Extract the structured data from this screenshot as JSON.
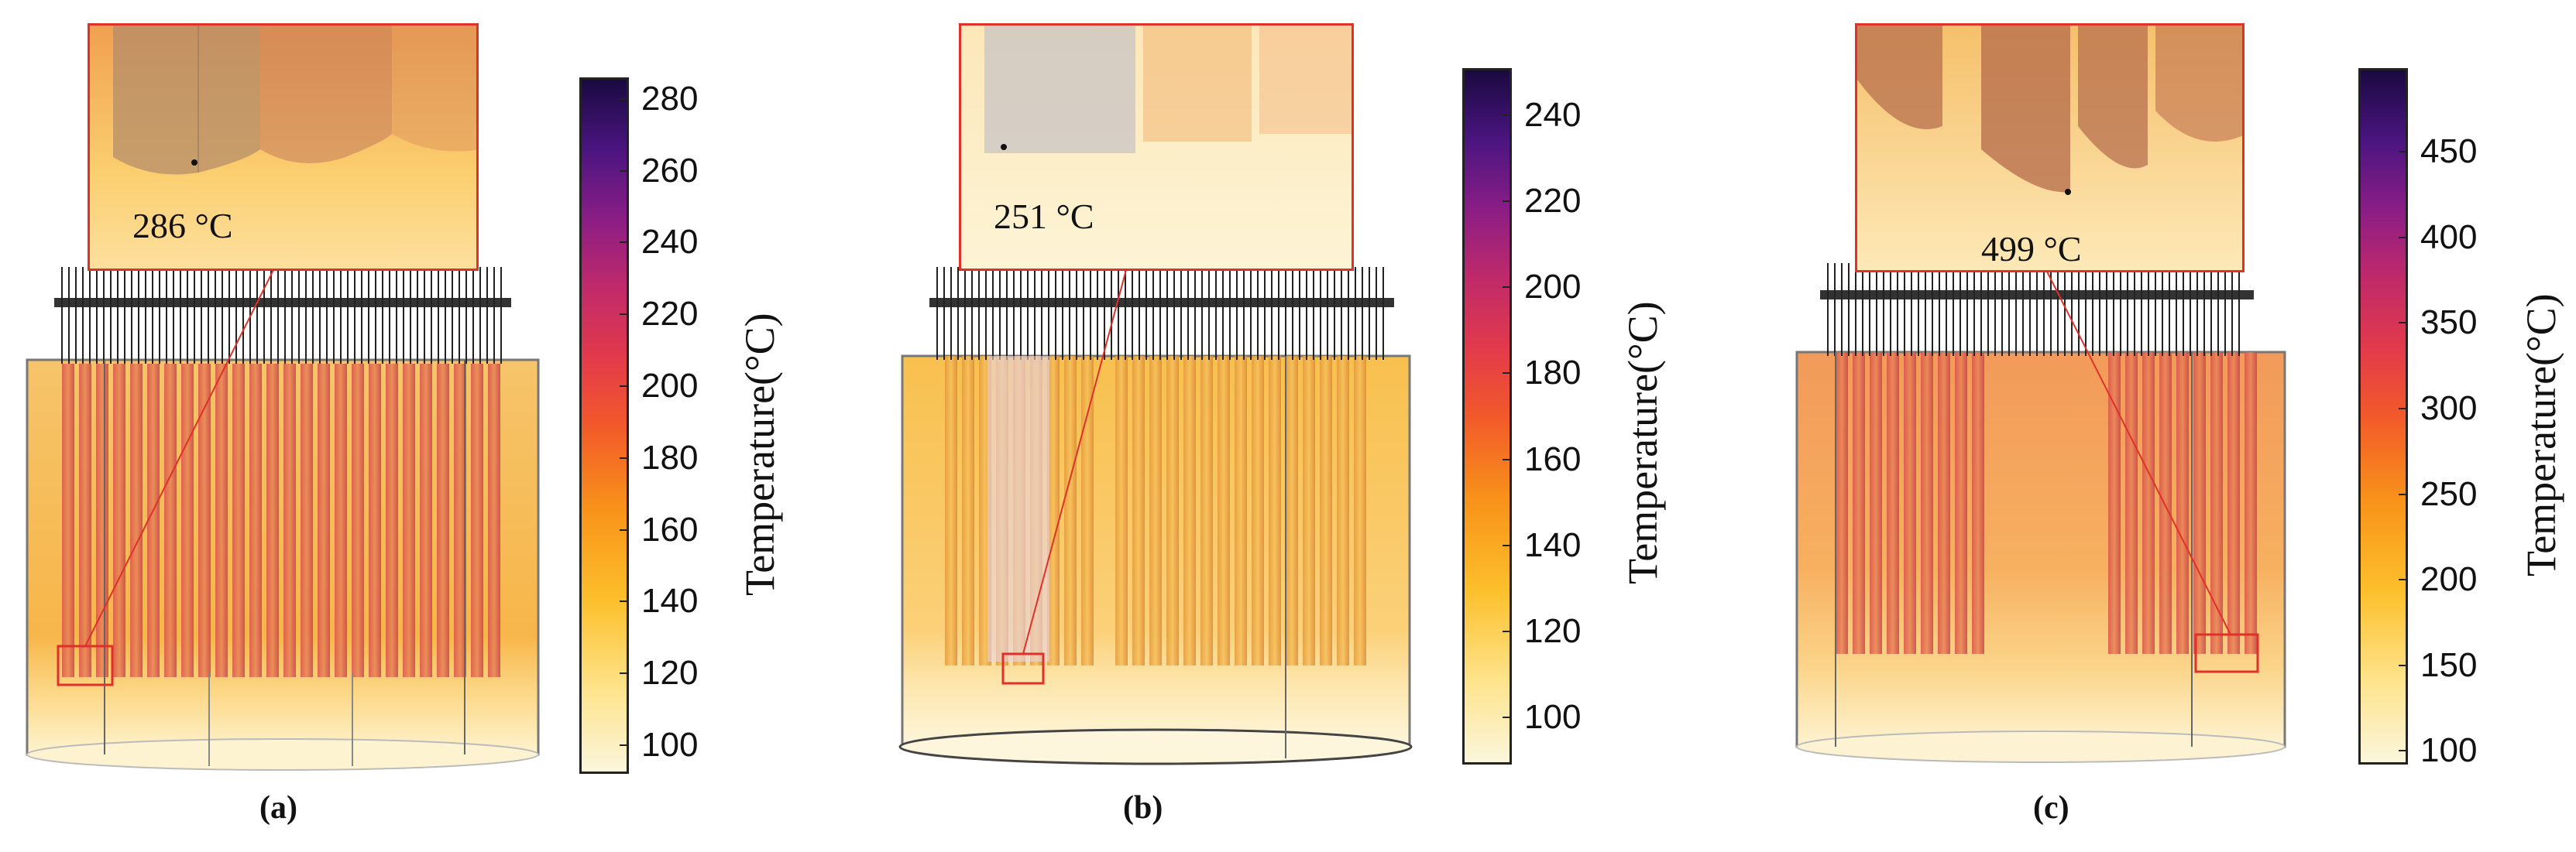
{
  "colorbar_title": "Temperature(°C)",
  "panels": [
    {
      "caption": "(a)",
      "zoom_label": "286 °C",
      "max_temperature_c": 286,
      "colorbar_ticks": [
        "280",
        "260",
        "240",
        "220",
        "200",
        "180",
        "160",
        "140",
        "120",
        "100"
      ],
      "colorbar_range": [
        92,
        286
      ]
    },
    {
      "caption": "(b)",
      "zoom_label": "251 °C",
      "max_temperature_c": 251,
      "colorbar_ticks": [
        "240",
        "220",
        "200",
        "180",
        "160",
        "140",
        "120",
        "100"
      ],
      "colorbar_range": [
        89,
        251
      ]
    },
    {
      "caption": "(c)",
      "zoom_label": "499 °C",
      "max_temperature_c": 499,
      "colorbar_ticks": [
        "450",
        "400",
        "350",
        "300",
        "250",
        "200",
        "150",
        "100"
      ],
      "colorbar_range": [
        92,
        499
      ]
    }
  ],
  "colors": {
    "highlight": "#e0302a",
    "colormap": [
      "#fbf6dc",
      "#fde38a",
      "#fcbf2a",
      "#f8921a",
      "#f2592a",
      "#e23a4c",
      "#c02a6a",
      "#8a1d86",
      "#4a1580",
      "#1a0a40"
    ]
  }
}
